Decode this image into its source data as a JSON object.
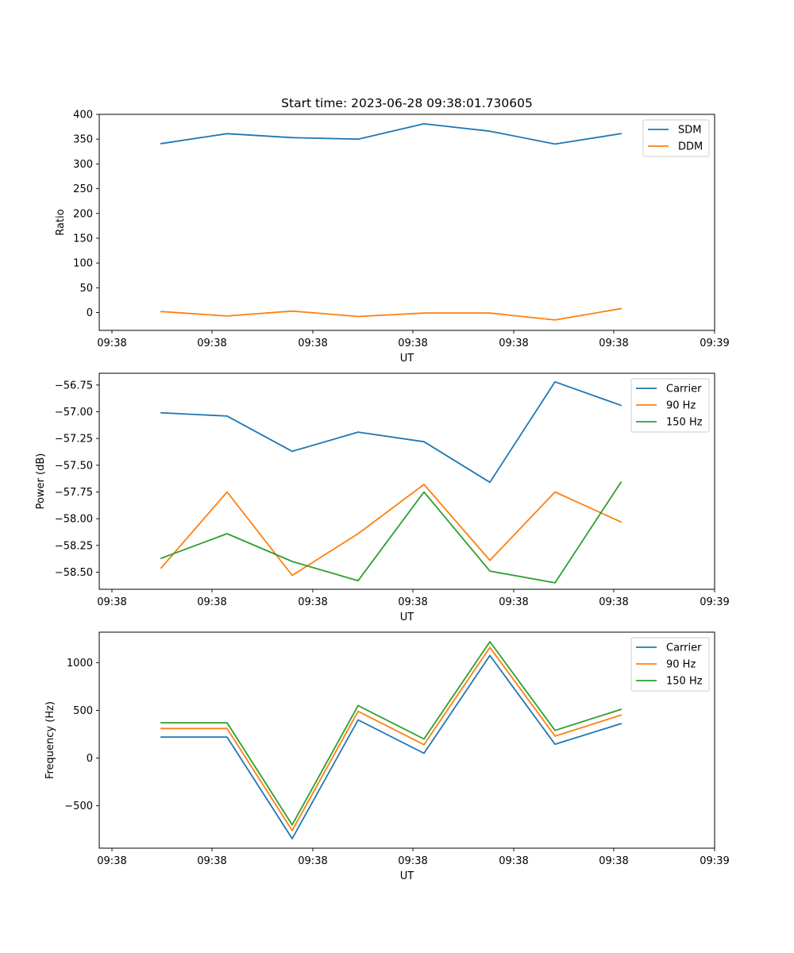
{
  "chart_data": [
    {
      "type": "line",
      "title": "Start time: 2023-06-28 09:38:01.730605",
      "xlabel": "UT",
      "ylabel": "Ratio",
      "x_tick_labels": [
        "09:38",
        "09:38",
        "09:38",
        "09:38",
        "09:38",
        "09:38",
        "09:39"
      ],
      "y_ticks": [
        0,
        50,
        100,
        150,
        200,
        250,
        300,
        350,
        400
      ],
      "ylim": [
        -36,
        400
      ],
      "legend_position": "upper right",
      "series": [
        {
          "name": "SDM",
          "color": "#1f77b4",
          "values": [
            341,
            361,
            353,
            350,
            381,
            366,
            340,
            361
          ]
        },
        {
          "name": "DDM",
          "color": "#ff7f0e",
          "values": [
            2,
            -7,
            3,
            -8,
            -1,
            -1,
            -15,
            8
          ]
        }
      ]
    },
    {
      "type": "line",
      "title": "",
      "xlabel": "UT",
      "ylabel": "Power (dB)",
      "x_tick_labels": [
        "09:38",
        "09:38",
        "09:38",
        "09:38",
        "09:38",
        "09:38",
        "09:39"
      ],
      "y_ticks": [
        -58.5,
        -58.25,
        -58.0,
        -57.75,
        -57.5,
        -57.25,
        -57.0,
        -56.75
      ],
      "y_tick_labels": [
        "−58.50",
        "−58.25",
        "−58.00",
        "−57.75",
        "−57.50",
        "−57.25",
        "−57.00",
        "−56.75"
      ],
      "ylim": [
        -58.66,
        -56.64
      ],
      "legend_position": "upper right",
      "series": [
        {
          "name": "Carrier",
          "color": "#1f77b4",
          "values": [
            -57.01,
            -57.04,
            -57.37,
            -57.19,
            -57.28,
            -57.66,
            -56.72,
            -56.94
          ]
        },
        {
          "name": "90 Hz",
          "color": "#ff7f0e",
          "values": [
            -58.46,
            -57.75,
            -58.53,
            -58.14,
            -57.68,
            -58.39,
            -57.75,
            -58.03
          ]
        },
        {
          "name": "150 Hz",
          "color": "#2ca02c",
          "values": [
            -58.37,
            -58.14,
            -58.4,
            -58.58,
            -57.75,
            -58.49,
            -58.6,
            -57.66
          ]
        }
      ]
    },
    {
      "type": "line",
      "title": "",
      "xlabel": "UT",
      "ylabel": "Frequency (Hz)",
      "x_tick_labels": [
        "09:38",
        "09:38",
        "09:38",
        "09:38",
        "09:38",
        "09:38",
        "09:39"
      ],
      "y_ticks": [
        -500,
        0,
        500,
        1000
      ],
      "y_tick_labels": [
        "−500",
        "0",
        "500",
        "1000"
      ],
      "ylim": [
        -945,
        1320
      ],
      "legend_position": "upper right",
      "series": [
        {
          "name": "Carrier",
          "color": "#1f77b4",
          "values": [
            220,
            220,
            -845,
            400,
            50,
            1075,
            145,
            360
          ]
        },
        {
          "name": "90 Hz",
          "color": "#ff7f0e",
          "values": [
            310,
            310,
            -760,
            490,
            140,
            1160,
            230,
            450
          ]
        },
        {
          "name": "150 Hz",
          "color": "#2ca02c",
          "values": [
            370,
            370,
            -700,
            550,
            200,
            1220,
            290,
            510
          ]
        }
      ]
    }
  ]
}
